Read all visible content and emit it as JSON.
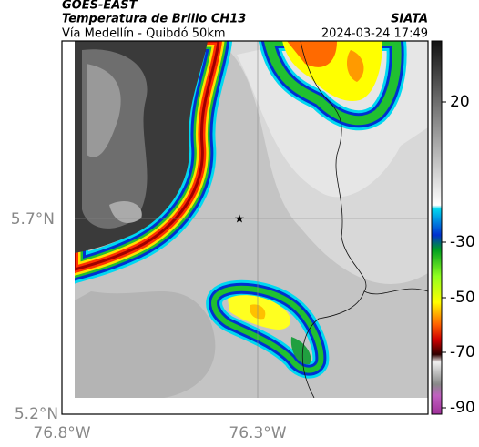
{
  "header": {
    "satellite": "GOES-EAST",
    "title": "Temperatura de Brillo CH13",
    "subtitle": "Vía Medellín - Quibdó 50km",
    "source": "SIATA",
    "datetime": "2024-03-24 17:49"
  },
  "axes": {
    "lat_labels": [
      "5.7°N",
      "5.2°N"
    ],
    "lon_labels": [
      "76.8°W",
      "76.3°W"
    ]
  },
  "colorbar": {
    "ticks": [
      20,
      -30,
      -50,
      -70,
      -90
    ]
  }
}
